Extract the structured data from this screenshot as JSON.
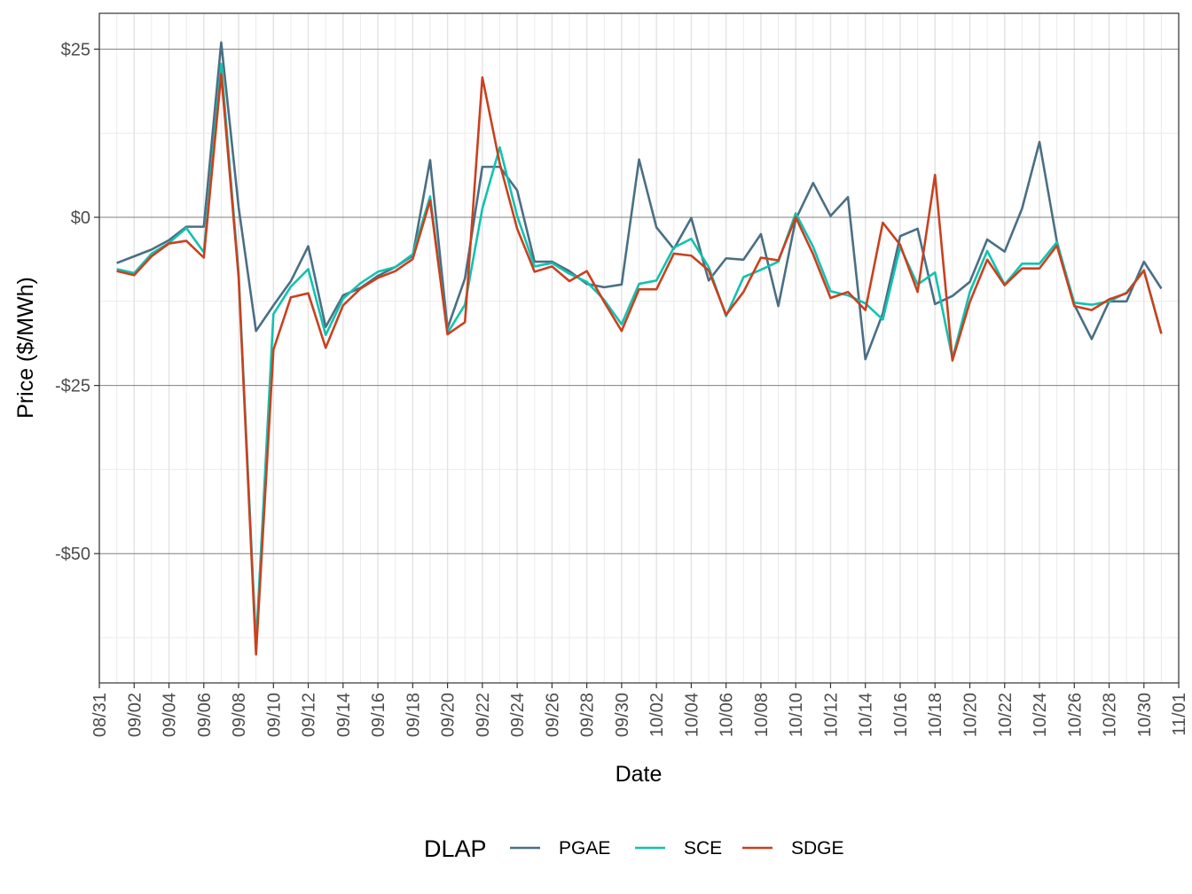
{
  "chart_data": {
    "type": "line",
    "xlabel": "Date",
    "ylabel": "Price ($/MWh)",
    "x_ticks": [
      "08/31",
      "09/02",
      "09/04",
      "09/06",
      "09/08",
      "09/10",
      "09/12",
      "09/14",
      "09/16",
      "09/18",
      "09/20",
      "09/22",
      "09/24",
      "09/26",
      "09/28",
      "09/30",
      "10/02",
      "10/04",
      "10/06",
      "10/08",
      "10/10",
      "10/12",
      "10/14",
      "10/16",
      "10/18",
      "10/20",
      "10/22",
      "10/24",
      "10/26",
      "10/28",
      "10/30",
      "11/01"
    ],
    "y_ticks": [
      {
        "value": 25,
        "label": "$25"
      },
      {
        "value": 0,
        "label": "$0"
      },
      {
        "value": -25,
        "label": "-$25"
      },
      {
        "value": -50,
        "label": "-$50"
      }
    ],
    "ylim": [
      -69.5,
      30.5
    ],
    "grid": true,
    "legend": {
      "title": "DLAP",
      "position": "bottom"
    },
    "x": [
      "09/01",
      "09/02",
      "09/03",
      "09/04",
      "09/05",
      "09/06",
      "09/07",
      "09/08",
      "09/09",
      "09/10",
      "09/11",
      "09/12",
      "09/13",
      "09/14",
      "09/15",
      "09/16",
      "09/17",
      "09/18",
      "09/19",
      "09/20",
      "09/21",
      "09/22",
      "09/23",
      "09/24",
      "09/25",
      "09/26",
      "09/27",
      "09/28",
      "09/29",
      "09/30",
      "10/01",
      "10/02",
      "10/03",
      "10/04",
      "10/05",
      "10/06",
      "10/07",
      "10/08",
      "10/09",
      "10/10",
      "10/11",
      "10/12",
      "10/13",
      "10/14",
      "10/15",
      "10/16",
      "10/17",
      "10/18",
      "10/19",
      "10/20",
      "10/21",
      "10/22",
      "10/23",
      "10/24",
      "10/25",
      "10/26",
      "10/27",
      "10/28",
      "10/29",
      "10/30",
      "10/31"
    ],
    "series": [
      {
        "name": "PGAE",
        "color": "#4a6f85",
        "values": [
          -6.8,
          -5.8,
          -4.8,
          -3.4,
          -1.4,
          -1.4,
          26.0,
          1.5,
          -16.9,
          -13.1,
          -9.5,
          -4.3,
          -16.3,
          -11.6,
          -10.5,
          -8.7,
          -7.4,
          -5.7,
          8.5,
          -16.5,
          -9.1,
          7.5,
          7.5,
          4.0,
          -6.6,
          -6.6,
          -8.0,
          -9.9,
          -10.4,
          -10.0,
          8.6,
          -1.5,
          -4.7,
          -0.1,
          -9.4,
          -6.1,
          -6.3,
          -2.5,
          -13.2,
          -0.3,
          5.1,
          0.2,
          3.0,
          -21.1,
          -14.3,
          -2.8,
          -1.7,
          -12.9,
          -11.7,
          -9.6,
          -3.3,
          -5.1,
          1.3,
          11.2,
          -3.6,
          -13.0,
          -18.1,
          -12.5,
          -12.5,
          -6.6,
          -10.6
        ]
      },
      {
        "name": "SCE",
        "color": "#12c2b0",
        "values": [
          -7.7,
          -8.3,
          -5.4,
          -3.8,
          -1.6,
          -5.2,
          22.8,
          -8.3,
          -63.5,
          -14.4,
          -10.3,
          -7.7,
          -17.5,
          -12.1,
          -9.8,
          -8.1,
          -7.4,
          -5.5,
          3.1,
          -17.2,
          -13.0,
          1.3,
          10.4,
          0.2,
          -7.3,
          -6.8,
          -8.4,
          -9.6,
          -12.3,
          -15.9,
          -9.9,
          -9.4,
          -4.5,
          -3.2,
          -7.4,
          -14.7,
          -8.9,
          -7.8,
          -6.6,
          0.6,
          -4.4,
          -11.0,
          -11.6,
          -12.8,
          -15.2,
          -4.4,
          -10.0,
          -8.2,
          -21.0,
          -11.1,
          -5.0,
          -10.0,
          -6.9,
          -6.9,
          -3.7,
          -12.7,
          -13.0,
          -12.5,
          -11.2,
          -7.9,
          -17.3
        ]
      },
      {
        "name": "SDGE",
        "color": "#c9411f",
        "values": [
          -8.0,
          -8.6,
          -5.8,
          -3.9,
          -3.5,
          -6.0,
          21.3,
          -8.9,
          -65.0,
          -19.7,
          -11.9,
          -11.3,
          -19.4,
          -13.1,
          -10.6,
          -9.0,
          -8.0,
          -6.2,
          2.5,
          -17.4,
          -15.6,
          20.8,
          8.0,
          -1.7,
          -8.1,
          -7.3,
          -9.5,
          -8.0,
          -12.6,
          -16.9,
          -10.7,
          -10.7,
          -5.4,
          -5.7,
          -7.9,
          -14.5,
          -11.1,
          -6.0,
          -6.4,
          0.0,
          -5.5,
          -12.0,
          -11.1,
          -13.8,
          -0.8,
          -4.1,
          -11.1,
          6.3,
          -21.3,
          -12.6,
          -6.3,
          -10.1,
          -7.6,
          -7.6,
          -4.2,
          -13.2,
          -13.8,
          -12.2,
          -11.3,
          -7.9,
          -17.3
        ]
      }
    ]
  }
}
